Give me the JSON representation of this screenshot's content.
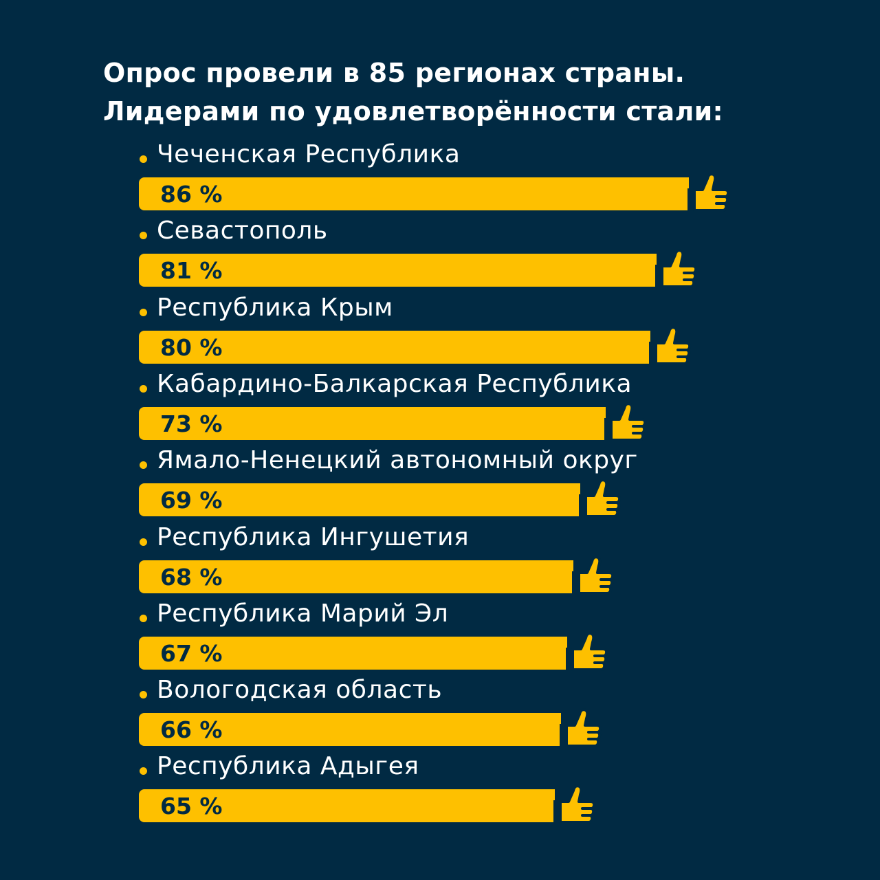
{
  "title": {
    "line1": "Опрос провели в 85 регионах страны.",
    "line2": "Лидерами по удовлетворённости стали:"
  },
  "colors": {
    "background": "#012a43",
    "bar": "#fec000",
    "text": "#ffffff",
    "value_text": "#012a43"
  },
  "icons": {
    "bar_end": "thumbs-up-icon",
    "bullet": "bullet-dot"
  },
  "chart_data": {
    "type": "bar",
    "orientation": "horizontal",
    "categories": [
      "Чеченская Республика",
      "Севастополь",
      "Республика Крым",
      "Кабардино-Балкарская Республика",
      "Ямало-Ненецкий автономный округ",
      "Республика Ингушетия",
      "Республика Марий Эл",
      "Вологодская область",
      "Республика Адыгея"
    ],
    "values": [
      86,
      81,
      80,
      73,
      69,
      68,
      67,
      66,
      65
    ],
    "value_labels": [
      "86 %",
      "81 %",
      "80 %",
      "73 %",
      "69 %",
      "68 %",
      "67 %",
      "66 %",
      "65 %"
    ],
    "unit": "%",
    "xlim": [
      0,
      100
    ],
    "title": "Опрос провели в 85 регионах страны. Лидерами по удовлетворённости стали:",
    "xlabel": "",
    "ylabel": "",
    "grid": false,
    "legend": "none"
  }
}
